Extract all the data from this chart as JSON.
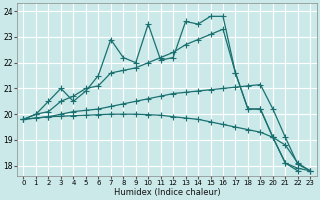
{
  "xlabel": "Humidex (Indice chaleur)",
  "background_color": "#cce9e9",
  "grid_color": "#ffffff",
  "line_color": "#1a7070",
  "xlim": [
    -0.5,
    23.5
  ],
  "ylim": [
    17.6,
    24.3
  ],
  "yticks": [
    18,
    19,
    20,
    21,
    22,
    23,
    24
  ],
  "xticks": [
    0,
    1,
    2,
    3,
    4,
    5,
    6,
    7,
    8,
    9,
    10,
    11,
    12,
    13,
    14,
    15,
    16,
    17,
    18,
    19,
    20,
    21,
    22,
    23
  ],
  "line1_x": [
    0,
    1,
    2,
    3,
    4,
    5,
    6,
    7,
    8,
    9,
    10,
    11,
    12,
    13,
    14,
    15,
    16,
    17,
    18,
    19,
    20,
    21,
    22
  ],
  "line1_y": [
    19.8,
    20.0,
    20.5,
    21.0,
    20.5,
    20.9,
    21.5,
    22.9,
    22.2,
    22.0,
    23.5,
    22.1,
    22.2,
    23.6,
    23.5,
    23.8,
    23.8,
    21.6,
    20.2,
    20.2,
    19.1,
    18.1,
    17.8
  ],
  "line2_x": [
    0,
    1,
    2,
    3,
    4,
    5,
    6,
    7,
    8,
    9,
    10,
    11,
    12,
    13,
    14,
    15,
    16,
    17,
    18,
    19,
    20,
    21,
    22,
    23
  ],
  "line2_y": [
    19.8,
    20.0,
    20.1,
    20.5,
    20.7,
    21.0,
    21.1,
    21.6,
    21.7,
    21.8,
    22.0,
    22.2,
    22.4,
    22.7,
    22.9,
    23.1,
    23.3,
    21.6,
    20.2,
    20.2,
    19.1,
    18.1,
    17.9,
    17.8
  ],
  "line3_x": [
    0,
    2,
    3,
    4,
    5,
    6,
    7,
    8,
    9,
    10,
    11,
    12,
    13,
    14,
    15,
    16,
    17,
    18,
    19,
    20,
    21,
    22,
    23
  ],
  "line3_y": [
    19.8,
    19.9,
    20.0,
    20.1,
    20.15,
    20.2,
    20.3,
    20.4,
    20.5,
    20.6,
    20.7,
    20.8,
    20.85,
    20.9,
    20.95,
    21.0,
    21.05,
    21.1,
    21.15,
    20.2,
    19.1,
    18.05,
    17.8
  ],
  "line4_x": [
    0,
    1,
    2,
    3,
    4,
    5,
    6,
    7,
    8,
    9,
    10,
    11,
    12,
    13,
    14,
    15,
    16,
    17,
    18,
    19,
    20,
    21,
    22,
    23
  ],
  "line4_y": [
    19.8,
    19.85,
    19.9,
    19.92,
    19.94,
    19.96,
    19.98,
    20.0,
    20.0,
    20.0,
    19.98,
    19.96,
    19.9,
    19.85,
    19.8,
    19.7,
    19.6,
    19.5,
    19.4,
    19.3,
    19.1,
    18.8,
    18.1,
    17.8
  ]
}
